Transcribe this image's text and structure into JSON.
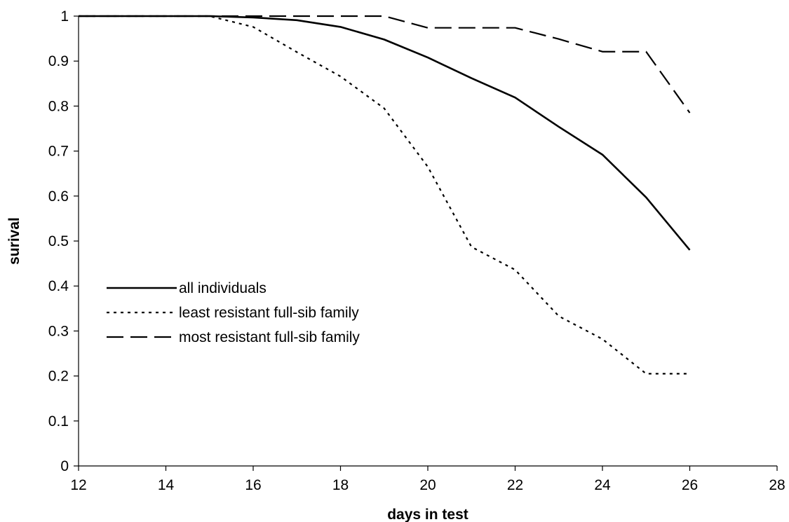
{
  "chart_data": {
    "type": "line",
    "title": "",
    "xlabel": "days in test",
    "ylabel": "surival",
    "xlim": [
      12,
      28
    ],
    "ylim": [
      0,
      1
    ],
    "xticks": [
      12,
      14,
      16,
      18,
      20,
      22,
      24,
      26,
      28
    ],
    "yticks": [
      0,
      0.1,
      0.2,
      0.3,
      0.4,
      0.5,
      0.6,
      0.7,
      0.8,
      0.9,
      1
    ],
    "grid": false,
    "legend_position": "left, lower-middle",
    "series": [
      {
        "name": "all individuals",
        "style": "solid",
        "color": "#000000",
        "x": [
          12,
          13,
          14,
          15,
          16,
          17,
          18,
          19,
          20,
          21,
          22,
          23,
          24,
          25,
          26
        ],
        "y": [
          1,
          1,
          1,
          1,
          0.997,
          0.991,
          0.976,
          0.948,
          0.908,
          0.862,
          0.819,
          0.754,
          0.692,
          0.597,
          0.48
        ]
      },
      {
        "name": "least resistant full-sib family",
        "style": "dotted",
        "color": "#000000",
        "x": [
          12,
          13,
          14,
          15,
          16,
          17,
          18,
          19,
          20,
          21,
          22,
          23,
          24,
          25,
          26
        ],
        "y": [
          1,
          1,
          1,
          1,
          0.976,
          0.92,
          0.866,
          0.795,
          0.665,
          0.487,
          0.436,
          0.333,
          0.282,
          0.205,
          0.205
        ]
      },
      {
        "name": "most resistant full-sib family",
        "style": "dashed",
        "color": "#000000",
        "x": [
          12,
          13,
          14,
          15,
          16,
          17,
          18,
          19,
          20,
          21,
          22,
          23,
          24,
          25,
          26
        ],
        "y": [
          1,
          1,
          1,
          1,
          1,
          1,
          1,
          1,
          0.974,
          0.974,
          0.974,
          0.949,
          0.921,
          0.921,
          0.785
        ]
      }
    ]
  }
}
